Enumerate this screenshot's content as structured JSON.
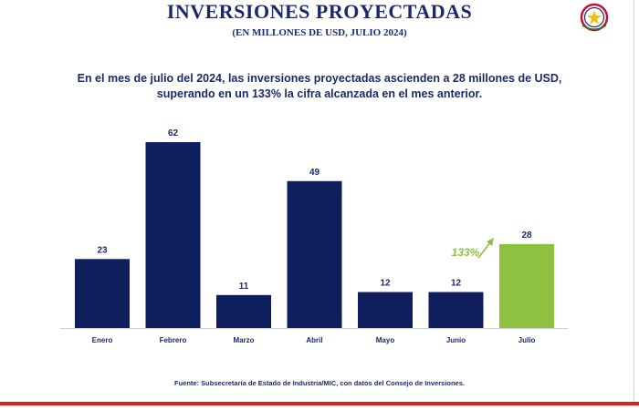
{
  "header": {
    "title": "INVERSIONES PROYECTADAS",
    "subtitle": "(EN MILLONES DE USD, JULIO 2024)"
  },
  "headline": {
    "line1": "En el mes de julio del 2024, las inversiones proyectadas ascienden a 28 millones de USD,",
    "line2": "superando en un 133% la cifra alcanzada en el mes anterior."
  },
  "annotation": {
    "label": "133%",
    "color": "#8dc13f"
  },
  "source": "Fuente: Subsecretaría de Estado de Industria/MIC, con datos del Consejo de Inversiones.",
  "colors": {
    "primary": "#0f1e5c",
    "highlight": "#8dc13f",
    "accent_red": "#e02020"
  },
  "chart_data": {
    "type": "bar",
    "categories": [
      "Enero",
      "Febrero",
      "Marzo",
      "Abril",
      "Mayo",
      "Junio",
      "Julio"
    ],
    "values": [
      23,
      62,
      11,
      49,
      12,
      12,
      28
    ],
    "highlight_index": 6,
    "ylim": [
      0,
      62
    ],
    "grid": false,
    "legend": "none"
  }
}
